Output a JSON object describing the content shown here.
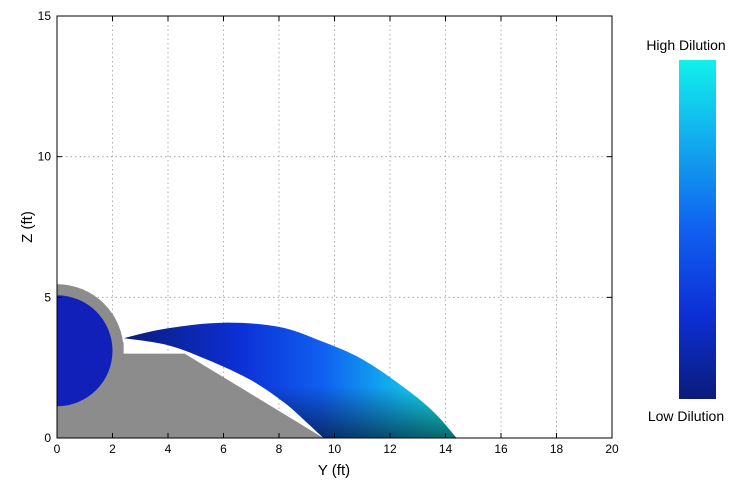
{
  "chart_data": {
    "type": "area",
    "xlabel": "Y (ft)",
    "ylabel": "Z (ft)",
    "xlim": [
      0,
      20
    ],
    "ylim": [
      0,
      15
    ],
    "xticks": [
      "0",
      "2",
      "4",
      "6",
      "8",
      "10",
      "12",
      "14",
      "16",
      "18",
      "20"
    ],
    "yticks": [
      "0",
      "5",
      "10",
      "15"
    ],
    "grid": true,
    "grid_style": "dotted",
    "colorbar": {
      "top_label": "High Dilution",
      "bottom_label": "Low Dilution",
      "colors": [
        "#0a1c7a",
        "#0d2fd6",
        "#1060f0",
        "#12a8ee",
        "#12f0ec"
      ]
    },
    "pipe": {
      "outer_radius": 5.4,
      "inner_radius": 2.0,
      "center": [
        0,
        3.1
      ],
      "outer_color": "#8c8c8c",
      "inner_color": "#1020b8"
    },
    "support_block": {
      "color": "#8c8c8c",
      "outline": [
        [
          0,
          0
        ],
        [
          0,
          3.4
        ],
        [
          2.4,
          3.4
        ],
        [
          2.4,
          3.0
        ],
        [
          4.6,
          3.0
        ],
        [
          9.6,
          0
        ]
      ]
    },
    "plume": {
      "upper_edge": [
        [
          2.4,
          3.55
        ],
        [
          4.0,
          3.9
        ],
        [
          6.0,
          4.1
        ],
        [
          8.0,
          3.95
        ],
        [
          9.5,
          3.45
        ],
        [
          11.0,
          2.8
        ],
        [
          12.5,
          1.8
        ],
        [
          13.6,
          0.9
        ],
        [
          14.4,
          0
        ]
      ],
      "lower_edge": [
        [
          2.4,
          3.55
        ],
        [
          4.0,
          3.3
        ],
        [
          5.5,
          2.75
        ],
        [
          7.0,
          2.05
        ],
        [
          8.2,
          1.25
        ],
        [
          9.0,
          0.55
        ],
        [
          9.6,
          0
        ]
      ]
    }
  }
}
